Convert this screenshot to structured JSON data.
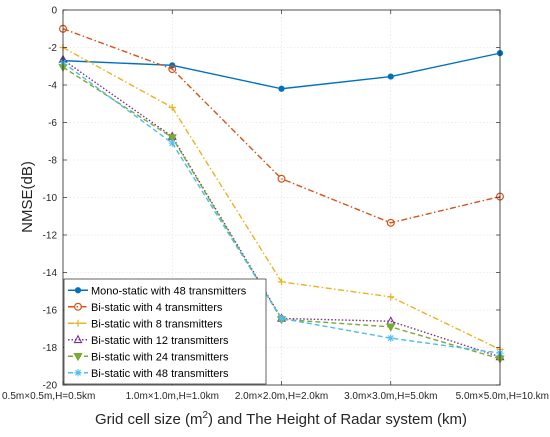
{
  "chart_data": {
    "type": "line",
    "categories": [
      "0.5m×0.5m,H=0.5km",
      "1.0m×1.0m,H=1.0km",
      "2.0m×2.0m,H=2.0km",
      "3.0m×3.0m,H=5.0km",
      "5.0m×5.0m,H=10.km"
    ],
    "xlabel_pre": "Grid cell size (m",
    "xlabel_sup": "2",
    "xlabel_post": ") and The Height of Radar system (km)",
    "ylabel": "NMSE(dB)",
    "ylim": [
      -20,
      0
    ],
    "yticks": [
      0,
      -2,
      -4,
      -6,
      -8,
      -10,
      -12,
      -14,
      -16,
      -18,
      -20
    ],
    "grid": true,
    "legend_position": "bottom-left",
    "series": [
      {
        "name": "Mono-static with 48 transmitters",
        "values": [
          -2.7,
          -2.95,
          -4.2,
          -3.55,
          -2.3
        ],
        "color": "#0072BD",
        "marker": "circle-filled",
        "dash": "solid"
      },
      {
        "name": "Bi-static with 4 transmitters",
        "values": [
          -1.0,
          -3.15,
          -9.0,
          -11.35,
          -9.95
        ],
        "color": "#D95319",
        "marker": "circle-open",
        "dash": "dashdot"
      },
      {
        "name": "Bi-static with 8 transmitters",
        "values": [
          -2.0,
          -5.2,
          -14.5,
          -15.3,
          -18.1
        ],
        "color": "#EDB120",
        "marker": "plus",
        "dash": "dashdot"
      },
      {
        "name": "Bi-static with 12 transmitters",
        "values": [
          -2.65,
          -6.75,
          -16.45,
          -16.6,
          -18.5
        ],
        "color": "#7E2F8E",
        "marker": "triangle-up",
        "dash": "dotted"
      },
      {
        "name": "Bi-static with 24 transmitters",
        "values": [
          -3.05,
          -6.8,
          -16.5,
          -16.9,
          -18.6
        ],
        "color": "#77AC30",
        "marker": "triangle-down-filled",
        "dash": "dashed"
      },
      {
        "name": "Bi-static with 48 transmitters",
        "values": [
          -2.8,
          -7.1,
          -16.45,
          -17.5,
          -18.3
        ],
        "color": "#4DBEEE",
        "marker": "asterisk",
        "dash": "dashed"
      }
    ]
  }
}
